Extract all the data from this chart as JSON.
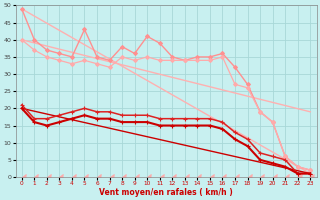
{
  "background_color": "#c8f0f0",
  "grid_color": "#a8d8d8",
  "xlabel": "Vent moyen/en rafales ( km/h )",
  "xlabel_color": "#cc0000",
  "xlim": [
    -0.5,
    23.5
  ],
  "ylim": [
    0,
    50
  ],
  "yticks": [
    0,
    5,
    10,
    15,
    20,
    25,
    30,
    35,
    40,
    45,
    50
  ],
  "xticks": [
    0,
    1,
    2,
    3,
    4,
    5,
    6,
    7,
    8,
    9,
    10,
    11,
    12,
    13,
    14,
    15,
    16,
    17,
    18,
    19,
    20,
    21,
    22,
    23
  ],
  "lines": [
    {
      "x": [
        0,
        23
      ],
      "y": [
        49,
        1
      ],
      "color": "#ffb0b0",
      "lw": 1.0,
      "marker": null,
      "ms": 0,
      "zorder": 2
    },
    {
      "x": [
        0,
        23
      ],
      "y": [
        40,
        19
      ],
      "color": "#ffb0b0",
      "lw": 1.0,
      "marker": null,
      "ms": 0,
      "zorder": 2
    },
    {
      "x": [
        0,
        1,
        2,
        3,
        4,
        5,
        6,
        7,
        8,
        9,
        10,
        11,
        12,
        13,
        14,
        15,
        16,
        17,
        18,
        19,
        20,
        21,
        22,
        23
      ],
      "y": [
        49,
        40,
        37,
        36,
        35,
        43,
        35,
        34,
        38,
        36,
        41,
        39,
        35,
        34,
        35,
        35,
        36,
        32,
        27,
        19,
        16,
        6,
        3,
        2
      ],
      "color": "#ff9090",
      "lw": 1.0,
      "marker": "D",
      "ms": 2.0,
      "zorder": 3
    },
    {
      "x": [
        0,
        1,
        2,
        3,
        4,
        5,
        6,
        7,
        8,
        9,
        10,
        11,
        12,
        13,
        14,
        15,
        16,
        17,
        18,
        19,
        20,
        21,
        22,
        23
      ],
      "y": [
        40,
        37,
        35,
        34,
        33,
        34,
        33,
        32,
        35,
        34,
        35,
        34,
        34,
        34,
        34,
        34,
        35,
        27,
        26,
        19,
        16,
        6,
        3,
        2
      ],
      "color": "#ffaaaa",
      "lw": 0.9,
      "marker": "D",
      "ms": 2.0,
      "zorder": 3
    },
    {
      "x": [
        0,
        23
      ],
      "y": [
        20,
        1
      ],
      "color": "#cc0000",
      "lw": 1.0,
      "marker": null,
      "ms": 0,
      "zorder": 3
    },
    {
      "x": [
        0,
        1,
        2,
        3,
        4,
        5,
        6,
        7,
        8,
        9,
        10,
        11,
        12,
        13,
        14,
        15,
        16,
        17,
        18,
        19,
        20,
        21,
        22,
        23
      ],
      "y": [
        21,
        17,
        17,
        18,
        19,
        20,
        19,
        19,
        18,
        18,
        18,
        17,
        17,
        17,
        17,
        17,
        16,
        13,
        11,
        7,
        6,
        5,
        1,
        1
      ],
      "color": "#dd2222",
      "lw": 1.1,
      "marker": "+",
      "ms": 3.5,
      "zorder": 4
    },
    {
      "x": [
        0,
        1,
        2,
        3,
        4,
        5,
        6,
        7,
        8,
        9,
        10,
        11,
        12,
        13,
        14,
        15,
        16,
        17,
        18,
        19,
        20,
        21,
        22,
        23
      ],
      "y": [
        20,
        16,
        15,
        16,
        17,
        18,
        17,
        17,
        16,
        16,
        16,
        15,
        15,
        15,
        15,
        15,
        14,
        11,
        9,
        5,
        4,
        3,
        1,
        1
      ],
      "color": "#cc0000",
      "lw": 1.5,
      "marker": "+",
      "ms": 3.5,
      "zorder": 5
    },
    {
      "x": [
        0,
        1,
        2,
        3,
        4,
        5,
        6,
        7,
        8,
        9,
        10,
        11,
        12,
        13,
        14,
        15,
        16,
        17,
        18,
        19,
        20,
        21,
        22,
        23
      ],
      "y": [
        0,
        0,
        0,
        0,
        0,
        0,
        0,
        0,
        0,
        0,
        0,
        0,
        0,
        0,
        0,
        0,
        0,
        0,
        0,
        0,
        0,
        0,
        0,
        0
      ],
      "color": "#ffaaaa",
      "lw": 0.5,
      "marker": 4,
      "ms": 4.0,
      "zorder": 2
    }
  ]
}
